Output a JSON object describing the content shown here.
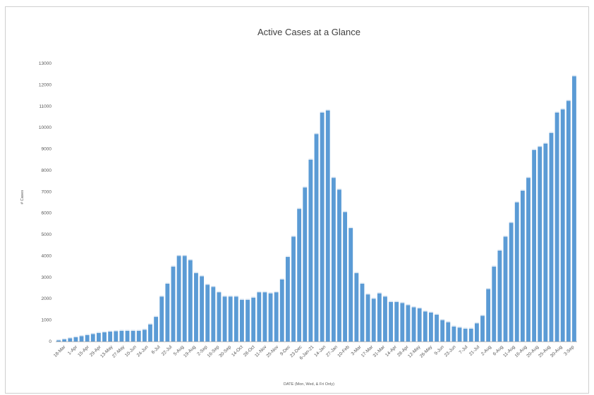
{
  "chart_data": {
    "type": "bar",
    "title": "Active Cases at a Glance",
    "xlabel": "DATE (Mon, Wed, & Fri Only)",
    "ylabel": "# Cases",
    "ylim": [
      0,
      13000
    ],
    "yticks": [
      0,
      1000,
      2000,
      3000,
      4000,
      5000,
      6000,
      7000,
      8000,
      9000,
      10000,
      11000,
      12000,
      13000
    ],
    "grid": false,
    "bar_color": "#5b9bd5",
    "xtick_labels": [
      "18-Mar",
      "1-Apr",
      "15-Apr",
      "29-Apr",
      "13-May",
      "27-May",
      "10-Jun",
      "24-Jun",
      "8-Jul",
      "22-Jul",
      "5-Aug",
      "19-Aug",
      "2-Sep",
      "16-Sep",
      "30-Sep",
      "14-Oct",
      "28-Oct",
      "11-Nov",
      "25-Nov",
      "9-Dec",
      "23-Dec",
      "6-Jan-21",
      "14-Jan",
      "27-Jan",
      "10-Feb",
      "3-Mar",
      "17-Mar",
      "31-Mar",
      "14-Apr",
      "28-Apr",
      "12-May",
      "26-May",
      "9-Jun",
      "23-Jun",
      "7-Jul",
      "21-Jul",
      "2-Aug",
      "6-Aug",
      "11-Aug",
      "16-Aug",
      "20-Aug",
      "25-Aug",
      "30-Aug",
      "3-Sep"
    ],
    "values": [
      50,
      100,
      150,
      200,
      250,
      300,
      350,
      400,
      430,
      460,
      480,
      500,
      500,
      500,
      500,
      550,
      800,
      1150,
      2100,
      2700,
      3500,
      4000,
      4000,
      3800,
      3200,
      3050,
      2650,
      2550,
      2300,
      2100,
      2100,
      2100,
      1950,
      1950,
      2050,
      2300,
      2300,
      2250,
      2300,
      2900,
      3950,
      4900,
      6200,
      7200,
      8500,
      9700,
      10700,
      10800,
      7650,
      7100,
      6050,
      5300,
      3200,
      2700,
      2200,
      2000,
      2250,
      2100,
      1850,
      1850,
      1800,
      1700,
      1600,
      1550,
      1400,
      1350,
      1250,
      1000,
      900,
      700,
      650,
      600,
      600,
      850,
      1200,
      2450,
      3500,
      4250,
      4900,
      5550,
      6500,
      7050,
      7650,
      8950,
      9100,
      9250,
      9750,
      10700,
      10850,
      11250,
      12400
    ]
  }
}
